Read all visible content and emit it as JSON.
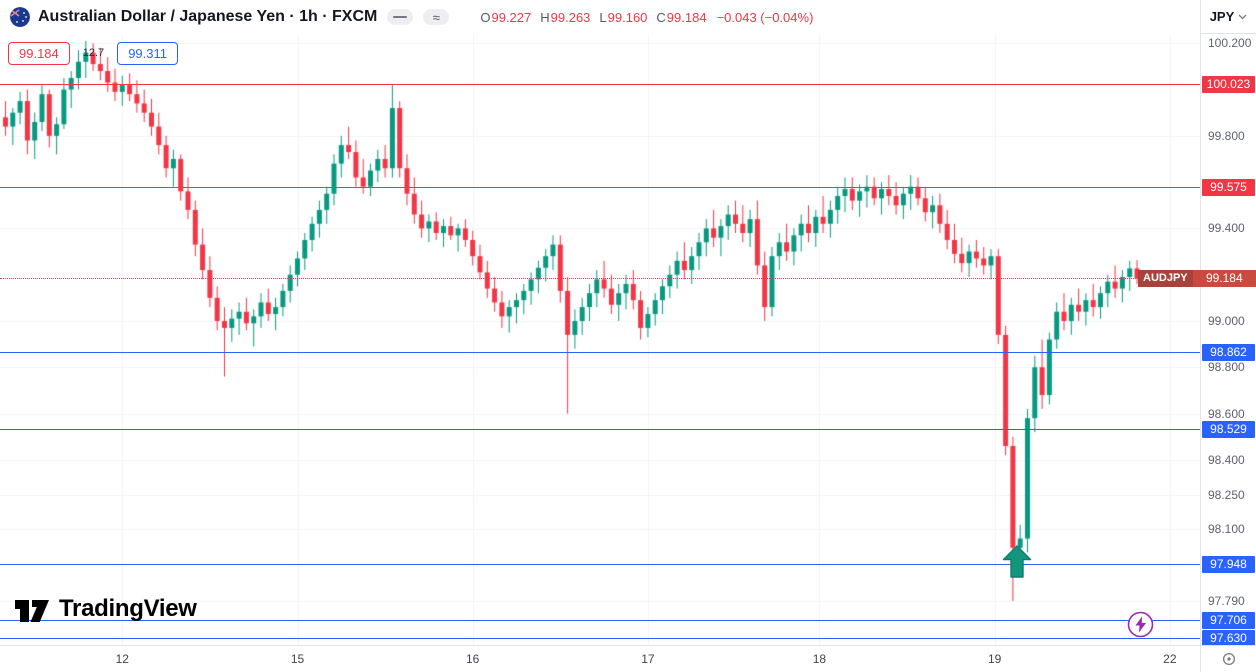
{
  "topbar": {
    "symbol_title": "Australian Dollar / Japanese Yen · 1h · FXCM",
    "ohlc": {
      "o_label": "O",
      "o_value": "99.227",
      "h_label": "H",
      "h_value": "99.263",
      "l_label": "L",
      "l_value": "99.160",
      "c_label": "C",
      "c_value": "99.184",
      "change": "−0.043 (−0.04%)"
    },
    "currency_button": "JPY"
  },
  "left_labels": {
    "red_price": "99.184",
    "mid_text": "12.7",
    "blue_price": "99.311"
  },
  "last_price": {
    "pair_label": "AUDJPY",
    "label": "99.184",
    "value": 99.184
  },
  "levels": [
    {
      "label": "100.023",
      "price": 100.023,
      "color": "#f23645"
    },
    {
      "label": "99.575",
      "price": 99.575,
      "color": "#f23645"
    },
    {
      "label": "98.862",
      "price": 98.862,
      "color": "#2962ff"
    },
    {
      "label": "98.529",
      "price": 98.529,
      "color": "#2962ff"
    },
    {
      "label": "97.948",
      "price": 97.948,
      "color": "#2962ff"
    },
    {
      "label": "97.706",
      "price": 97.706,
      "color": "#2962ff"
    },
    {
      "label": "97.630",
      "price": 97.63,
      "color": "#2962ff"
    }
  ],
  "price_axis": {
    "ticks": [
      "100.200",
      "99.800",
      "99.400",
      "99.000",
      "98.800",
      "98.600",
      "98.400",
      "98.250",
      "98.100",
      "97.790"
    ]
  },
  "time_axis": {
    "labels": [
      {
        "label": "12",
        "index": 16
      },
      {
        "label": "15",
        "index": 40
      },
      {
        "label": "16",
        "index": 64
      },
      {
        "label": "17",
        "index": 88
      },
      {
        "label": "18",
        "index": 111.5
      },
      {
        "label": "19",
        "index": 135.5
      },
      {
        "label": "22",
        "index": 159.5
      }
    ]
  },
  "watermark": {
    "text": "TradingView"
  },
  "colors": {
    "up": "#089981",
    "down": "#f23645",
    "grid": "#f0f3fa",
    "level_red": "#f23645",
    "level_blue": "#2962ff",
    "last_price_bg": "#cb4a3f",
    "last_price_symbol_bg": "#a8423a",
    "arrow": "#12967e",
    "lightning": "#9c27b0"
  },
  "chart_data": {
    "type": "candlestick",
    "title": "Australian Dollar / Japanese Yen",
    "symbol": "AUDJPY",
    "interval": "1h",
    "exchange": "FXCM",
    "ylim": [
      97.6,
      100.24
    ],
    "x_label_values": [
      "12",
      "15",
      "16",
      "17",
      "18",
      "19",
      "22"
    ],
    "legend": "OHLC candles, red horizontal resistance lines at 100.023 / 99.575, blue support lines at 98.862 / 98.529 / 97.948 / 97.706 / 97.630, last price 99.184",
    "candles": [
      [
        99.88,
        99.95,
        99.8,
        99.84
      ],
      [
        99.84,
        99.92,
        99.76,
        99.9
      ],
      [
        99.9,
        99.99,
        99.85,
        99.95
      ],
      [
        99.95,
        100.0,
        99.72,
        99.78
      ],
      [
        99.78,
        99.9,
        99.7,
        99.86
      ],
      [
        99.86,
        100.02,
        99.82,
        99.98
      ],
      [
        99.98,
        100.0,
        99.75,
        99.8
      ],
      [
        99.8,
        99.88,
        99.72,
        99.85
      ],
      [
        99.85,
        100.05,
        99.83,
        100.0
      ],
      [
        100.0,
        100.08,
        99.92,
        100.05
      ],
      [
        100.05,
        100.17,
        100.0,
        100.12
      ],
      [
        100.12,
        100.21,
        100.05,
        100.16
      ],
      [
        100.16,
        100.2,
        100.08,
        100.11
      ],
      [
        100.11,
        100.18,
        100.04,
        100.08
      ],
      [
        100.08,
        100.14,
        99.99,
        100.03
      ],
      [
        100.03,
        100.09,
        99.95,
        99.99
      ],
      [
        99.99,
        100.06,
        99.93,
        100.02
      ],
      [
        100.02,
        100.07,
        99.95,
        99.98
      ],
      [
        99.98,
        100.04,
        99.9,
        99.94
      ],
      [
        99.94,
        100.0,
        99.86,
        99.9
      ],
      [
        99.9,
        99.96,
        99.8,
        99.84
      ],
      [
        99.84,
        99.9,
        99.72,
        99.76
      ],
      [
        99.76,
        99.8,
        99.62,
        99.66
      ],
      [
        99.66,
        99.74,
        99.58,
        99.7
      ],
      [
        99.7,
        99.72,
        99.52,
        99.56
      ],
      [
        99.56,
        99.62,
        99.44,
        99.48
      ],
      [
        99.48,
        99.52,
        99.28,
        99.33
      ],
      [
        99.33,
        99.4,
        99.18,
        99.22
      ],
      [
        99.22,
        99.28,
        99.06,
        99.1
      ],
      [
        99.1,
        99.15,
        98.96,
        99.0
      ],
      [
        99.0,
        99.06,
        98.76,
        98.97
      ],
      [
        98.97,
        99.05,
        98.91,
        99.01
      ],
      [
        99.01,
        99.08,
        98.94,
        99.04
      ],
      [
        99.04,
        99.1,
        98.96,
        98.99
      ],
      [
        98.99,
        99.05,
        98.89,
        99.02
      ],
      [
        99.02,
        99.12,
        98.97,
        99.08
      ],
      [
        99.08,
        99.14,
        99.0,
        99.03
      ],
      [
        99.03,
        99.1,
        98.96,
        99.06
      ],
      [
        99.06,
        99.16,
        99.02,
        99.13
      ],
      [
        99.13,
        99.24,
        99.08,
        99.2
      ],
      [
        99.2,
        99.3,
        99.15,
        99.27
      ],
      [
        99.27,
        99.38,
        99.22,
        99.35
      ],
      [
        99.35,
        99.45,
        99.3,
        99.42
      ],
      [
        99.42,
        99.52,
        99.36,
        99.48
      ],
      [
        99.48,
        99.58,
        99.42,
        99.55
      ],
      [
        99.55,
        99.72,
        99.5,
        99.68
      ],
      [
        99.68,
        99.8,
        99.62,
        99.76
      ],
      [
        99.76,
        99.84,
        99.7,
        99.73
      ],
      [
        99.73,
        99.78,
        99.58,
        99.62
      ],
      [
        99.62,
        99.7,
        99.55,
        99.58
      ],
      [
        99.58,
        99.68,
        99.54,
        99.65
      ],
      [
        99.65,
        99.74,
        99.6,
        99.7
      ],
      [
        99.7,
        99.76,
        99.62,
        99.66
      ],
      [
        99.66,
        100.02,
        99.62,
        99.92
      ],
      [
        99.92,
        99.95,
        99.62,
        99.66
      ],
      [
        99.66,
        99.72,
        99.5,
        99.55
      ],
      [
        99.55,
        99.62,
        99.42,
        99.46
      ],
      [
        99.46,
        99.52,
        99.36,
        99.4
      ],
      [
        99.4,
        99.46,
        99.34,
        99.43
      ],
      [
        99.43,
        99.47,
        99.35,
        99.38
      ],
      [
        99.38,
        99.44,
        99.32,
        99.41
      ],
      [
        99.41,
        99.45,
        99.35,
        99.37
      ],
      [
        99.37,
        99.42,
        99.3,
        99.4
      ],
      [
        99.4,
        99.44,
        99.32,
        99.35
      ],
      [
        99.35,
        99.39,
        99.24,
        99.28
      ],
      [
        99.28,
        99.33,
        99.18,
        99.21
      ],
      [
        99.21,
        99.26,
        99.1,
        99.14
      ],
      [
        99.14,
        99.19,
        99.04,
        99.08
      ],
      [
        99.08,
        99.13,
        98.97,
        99.02
      ],
      [
        99.02,
        99.09,
        98.95,
        99.06
      ],
      [
        99.06,
        99.12,
        98.99,
        99.09
      ],
      [
        99.09,
        99.16,
        99.03,
        99.13
      ],
      [
        99.13,
        99.21,
        99.07,
        99.18
      ],
      [
        99.18,
        99.26,
        99.12,
        99.23
      ],
      [
        99.23,
        99.31,
        99.17,
        99.28
      ],
      [
        99.28,
        99.37,
        99.22,
        99.33
      ],
      [
        99.33,
        99.37,
        99.08,
        99.13
      ],
      [
        99.13,
        99.19,
        98.6,
        98.94
      ],
      [
        98.94,
        99.05,
        98.88,
        99.0
      ],
      [
        99.0,
        99.1,
        98.94,
        99.06
      ],
      [
        99.06,
        99.16,
        99.0,
        99.12
      ],
      [
        99.12,
        99.22,
        99.06,
        99.18
      ],
      [
        99.18,
        99.26,
        99.1,
        99.14
      ],
      [
        99.14,
        99.2,
        99.03,
        99.07
      ],
      [
        99.07,
        99.16,
        99.0,
        99.12
      ],
      [
        99.12,
        99.2,
        99.05,
        99.16
      ],
      [
        99.16,
        99.22,
        99.05,
        99.09
      ],
      [
        99.09,
        99.13,
        98.92,
        98.97
      ],
      [
        98.97,
        99.06,
        98.93,
        99.03
      ],
      [
        99.03,
        99.12,
        98.98,
        99.09
      ],
      [
        99.09,
        99.18,
        99.03,
        99.15
      ],
      [
        99.15,
        99.24,
        99.1,
        99.2
      ],
      [
        99.2,
        99.3,
        99.14,
        99.26
      ],
      [
        99.26,
        99.34,
        99.18,
        99.22
      ],
      [
        99.22,
        99.32,
        99.16,
        99.28
      ],
      [
        99.28,
        99.38,
        99.22,
        99.34
      ],
      [
        99.34,
        99.44,
        99.28,
        99.4
      ],
      [
        99.4,
        99.48,
        99.32,
        99.36
      ],
      [
        99.36,
        99.44,
        99.28,
        99.41
      ],
      [
        99.41,
        99.5,
        99.35,
        99.46
      ],
      [
        99.46,
        99.52,
        99.38,
        99.42
      ],
      [
        99.42,
        99.5,
        99.34,
        99.38
      ],
      [
        99.38,
        99.48,
        99.32,
        99.44
      ],
      [
        99.44,
        99.52,
        99.2,
        99.24
      ],
      [
        99.24,
        99.3,
        99.0,
        99.06
      ],
      [
        99.06,
        99.32,
        99.02,
        99.28
      ],
      [
        99.28,
        99.38,
        99.22,
        99.34
      ],
      [
        99.34,
        99.42,
        99.26,
        99.3
      ],
      [
        99.3,
        99.4,
        99.24,
        99.37
      ],
      [
        99.37,
        99.46,
        99.3,
        99.42
      ],
      [
        99.42,
        99.5,
        99.34,
        99.38
      ],
      [
        99.38,
        99.48,
        99.32,
        99.45
      ],
      [
        99.45,
        99.54,
        99.38,
        99.42
      ],
      [
        99.42,
        99.52,
        99.36,
        99.48
      ],
      [
        99.48,
        99.58,
        99.42,
        99.54
      ],
      [
        99.54,
        99.62,
        99.47,
        99.57
      ],
      [
        99.57,
        99.62,
        99.48,
        99.52
      ],
      [
        99.52,
        99.59,
        99.45,
        99.56
      ],
      [
        99.56,
        99.63,
        99.49,
        99.58
      ],
      [
        99.58,
        99.62,
        99.5,
        99.53
      ],
      [
        99.53,
        99.6,
        99.46,
        99.57
      ],
      [
        99.57,
        99.63,
        99.5,
        99.54
      ],
      [
        99.54,
        99.6,
        99.46,
        99.5
      ],
      [
        99.5,
        99.58,
        99.44,
        99.55
      ],
      [
        99.55,
        99.63,
        99.48,
        99.58
      ],
      [
        99.58,
        99.62,
        99.5,
        99.53
      ],
      [
        99.53,
        99.58,
        99.43,
        99.47
      ],
      [
        99.47,
        99.54,
        99.4,
        99.5
      ],
      [
        99.5,
        99.55,
        99.38,
        99.42
      ],
      [
        99.42,
        99.48,
        99.31,
        99.35
      ],
      [
        99.35,
        99.42,
        99.25,
        99.29
      ],
      [
        99.29,
        99.36,
        99.21,
        99.25
      ],
      [
        99.25,
        99.33,
        99.19,
        99.3
      ],
      [
        99.3,
        99.35,
        99.23,
        99.27
      ],
      [
        99.27,
        99.32,
        99.2,
        99.24
      ],
      [
        99.24,
        99.31,
        99.18,
        99.28
      ],
      [
        99.28,
        99.31,
        98.9,
        98.94
      ],
      [
        98.94,
        98.98,
        98.42,
        98.46
      ],
      [
        98.46,
        98.5,
        97.79,
        98.02
      ],
      [
        98.02,
        98.12,
        97.96,
        98.06
      ],
      [
        98.06,
        98.62,
        98.0,
        98.58
      ],
      [
        98.58,
        98.85,
        98.52,
        98.8
      ],
      [
        98.8,
        98.92,
        98.62,
        98.68
      ],
      [
        98.68,
        98.95,
        98.64,
        98.92
      ],
      [
        98.92,
        99.08,
        98.88,
        99.04
      ],
      [
        99.04,
        99.12,
        98.96,
        99.0
      ],
      [
        99.0,
        99.1,
        98.94,
        99.07
      ],
      [
        99.07,
        99.14,
        99.0,
        99.04
      ],
      [
        99.04,
        99.12,
        98.98,
        99.09
      ],
      [
        99.09,
        99.16,
        99.02,
        99.06
      ],
      [
        99.06,
        99.15,
        99.01,
        99.12
      ],
      [
        99.12,
        99.2,
        99.06,
        99.17
      ],
      [
        99.17,
        99.24,
        99.1,
        99.14
      ],
      [
        99.14,
        99.22,
        99.08,
        99.19
      ],
      [
        99.19,
        99.26,
        99.13,
        99.227
      ],
      [
        99.227,
        99.263,
        99.16,
        99.184
      ]
    ],
    "annotations": [
      {
        "type": "arrow-up",
        "index": 138.5,
        "price": 98.03,
        "color": "#12967e"
      }
    ]
  }
}
